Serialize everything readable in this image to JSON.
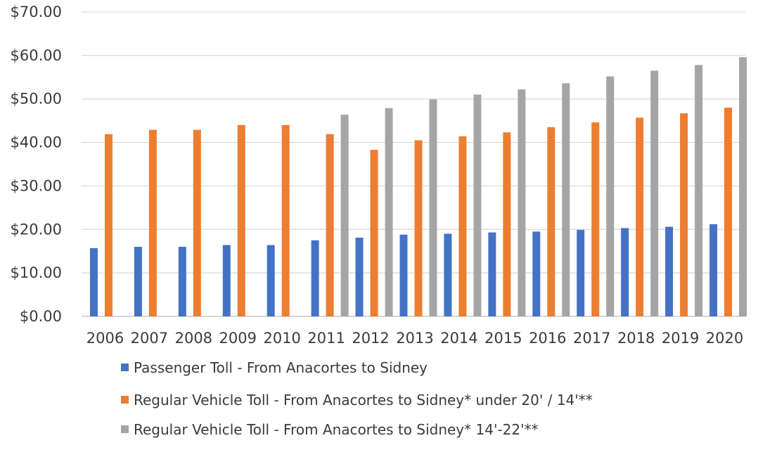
{
  "chart_data": {
    "type": "bar",
    "categories": [
      "2006",
      "2007",
      "2008",
      "2009",
      "2010",
      "2011",
      "2012",
      "2013",
      "2014",
      "2015",
      "2016",
      "2017",
      "2018",
      "2019",
      "2020"
    ],
    "ylim": [
      0,
      70
    ],
    "y_tick_labels": [
      "$0.00",
      "$10.00",
      "$20.00",
      "$30.00",
      "$40.00",
      "$50.00",
      "$60.00",
      "$70.00"
    ],
    "y_tick_values": [
      0,
      10,
      20,
      30,
      40,
      50,
      60,
      70
    ],
    "grid": true,
    "legend_position": "bottom",
    "series": [
      {
        "name": "Passenger Toll - From Anacortes to Sidney",
        "color": "#4472C4",
        "values": [
          15.7,
          16.0,
          16.0,
          16.4,
          16.4,
          17.5,
          18.1,
          18.8,
          19.0,
          19.3,
          19.5,
          19.9,
          20.3,
          20.6,
          21.2
        ]
      },
      {
        "name": "Regular Vehicle Toll - From Anacortes to Sidney* under 20' / 14'**",
        "color": "#ED7D31",
        "values": [
          41.9,
          42.9,
          42.9,
          44.0,
          44.0,
          41.9,
          38.3,
          40.5,
          41.4,
          42.3,
          43.5,
          44.6,
          45.7,
          46.7,
          48.0
        ]
      },
      {
        "name": "Regular Vehicle Toll - From Anacortes to Sidney* 14'-22'**",
        "color": "#A5A5A5",
        "values": [
          null,
          null,
          null,
          null,
          null,
          46.4,
          47.9,
          49.9,
          51.0,
          52.2,
          53.6,
          55.2,
          56.5,
          57.8,
          59.6
        ]
      }
    ]
  }
}
